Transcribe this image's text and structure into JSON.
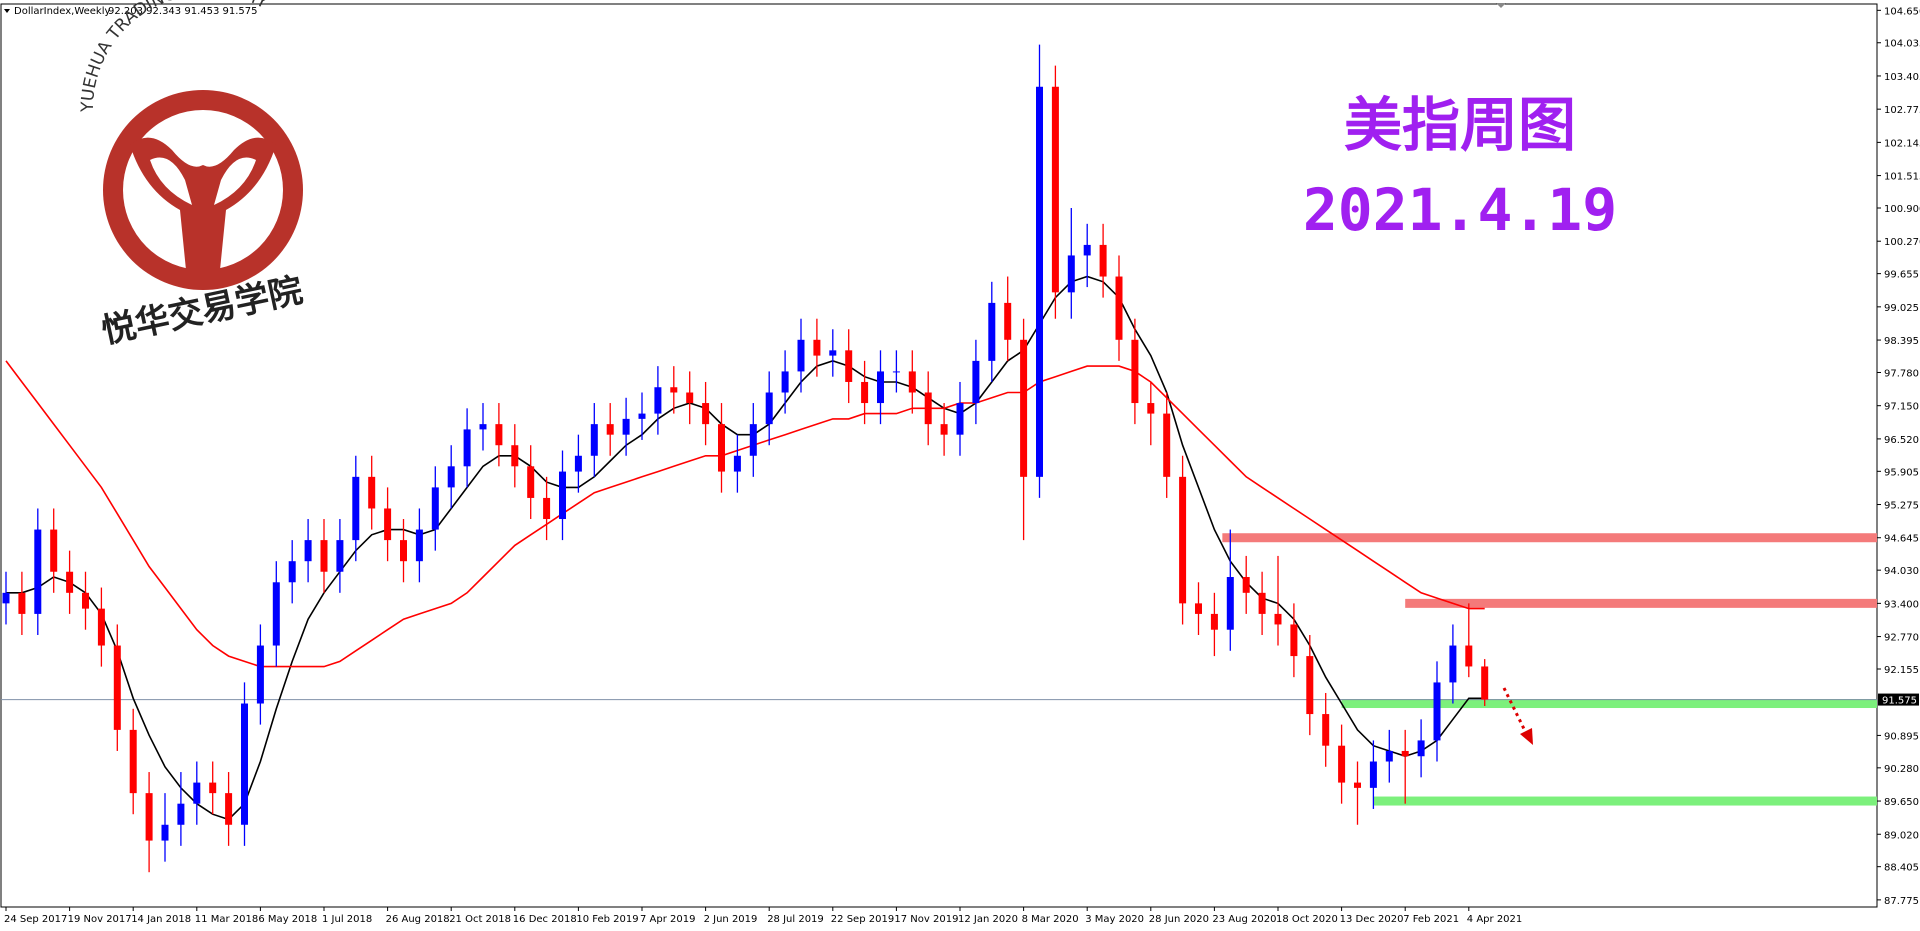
{
  "chart_data": {
    "type": "candlestick",
    "title": "DollarIndex,Weekly",
    "ohlc_label": "92.203 92.343 91.453 91.575",
    "watermark": {
      "arc_text": "YUEHUA TRADING ACADEMY",
      "cn_text": "悦华交易学院"
    },
    "annotations": [
      "美指周图",
      "2021.4.19"
    ],
    "annotation_color": "#a020f0",
    "up_color": "#0000ff",
    "down_color": "#ff0000",
    "categories": [
      "24 Sep 2017",
      null,
      null,
      null,
      "19 Nov 2017",
      null,
      null,
      null,
      "14 Jan 2018",
      null,
      null,
      null,
      "11 Mar 2018",
      null,
      null,
      null,
      "6 May 2018",
      null,
      null,
      null,
      "1 Jul 2018",
      null,
      null,
      null,
      "26 Aug 2018",
      null,
      null,
      null,
      "21 Oct 2018",
      null,
      null,
      null,
      "16 Dec 2018",
      null,
      null,
      null,
      "10 Feb 2019",
      null,
      null,
      null,
      "7 Apr 2019",
      null,
      null,
      null,
      "2 Jun 2019",
      null,
      null,
      null,
      "28 Jul 2019",
      null,
      null,
      null,
      "22 Sep 2019",
      null,
      null,
      null,
      "17 Nov 2019",
      null,
      null,
      null,
      "12 Jan 2020",
      null,
      null,
      null,
      "8 Mar 2020",
      null,
      null,
      null,
      "3 May 2020",
      null,
      null,
      null,
      "28 Jun 2020",
      null,
      null,
      null,
      "23 Aug 2020",
      null,
      null,
      null,
      "18 Oct 2020",
      null,
      null,
      null,
      "13 Dec 2020",
      null,
      null,
      null,
      "7 Feb 2021",
      null,
      null,
      null,
      "4 Apr 2021",
      null
    ],
    "open": [
      93.4,
      93.6,
      93.2,
      94.8,
      94.0,
      93.6,
      93.3,
      92.6,
      91.0,
      89.8,
      88.9,
      89.2,
      89.6,
      90.0,
      89.8,
      89.2,
      91.5,
      92.6,
      93.8,
      94.2,
      94.6,
      94.0,
      94.6,
      95.8,
      95.2,
      94.6,
      94.2,
      94.8,
      95.6,
      96.0,
      96.7,
      96.8,
      96.4,
      96.0,
      95.4,
      95.0,
      95.9,
      96.2,
      96.8,
      96.6,
      96.9,
      97.0,
      97.5,
      97.4,
      97.2,
      96.8,
      95.9,
      96.2,
      96.8,
      97.4,
      97.8,
      98.4,
      98.1,
      98.2,
      97.6,
      97.2,
      97.8,
      97.8,
      97.4,
      96.8,
      96.6,
      97.2,
      98.0,
      99.1,
      98.4,
      95.8,
      103.2,
      99.3,
      100.0,
      100.2,
      99.6,
      98.4,
      97.2,
      97.0,
      95.8,
      93.4,
      93.2,
      92.9,
      93.9,
      93.6,
      93.2,
      93.0,
      92.4,
      91.3,
      90.7,
      90.0,
      89.9,
      90.4,
      90.6,
      90.5,
      90.8,
      91.9,
      92.6,
      92.203
    ],
    "high": [
      94.0,
      94.0,
      95.2,
      95.2,
      94.4,
      94.0,
      93.7,
      93.0,
      91.4,
      90.2,
      89.8,
      90.2,
      90.4,
      90.4,
      90.2,
      91.9,
      93.0,
      94.2,
      94.6,
      95.0,
      95.0,
      95.0,
      96.2,
      96.2,
      95.6,
      95.0,
      95.2,
      96.0,
      96.4,
      97.1,
      97.2,
      97.2,
      96.8,
      96.4,
      95.8,
      96.3,
      96.6,
      97.2,
      97.2,
      97.3,
      97.4,
      97.9,
      97.9,
      97.8,
      97.6,
      97.2,
      96.6,
      97.2,
      97.8,
      98.2,
      98.8,
      98.8,
      98.6,
      98.6,
      98.0,
      98.2,
      98.2,
      98.2,
      97.8,
      97.2,
      97.6,
      98.4,
      99.5,
      99.6,
      98.8,
      104.0,
      103.6,
      100.9,
      100.6,
      100.6,
      100.0,
      98.8,
      97.6,
      97.4,
      96.2,
      93.8,
      93.6,
      94.8,
      94.3,
      94.0,
      94.3,
      93.4,
      92.8,
      91.7,
      91.1,
      90.4,
      90.8,
      91.0,
      91.0,
      91.2,
      92.3,
      93.0,
      93.4,
      92.343
    ],
    "low": [
      93.0,
      92.8,
      92.8,
      93.6,
      93.2,
      92.9,
      92.2,
      90.6,
      89.4,
      88.3,
      88.5,
      88.8,
      89.2,
      89.4,
      88.8,
      88.8,
      91.1,
      92.2,
      93.4,
      93.8,
      93.6,
      93.6,
      94.2,
      94.8,
      94.2,
      93.8,
      93.8,
      94.4,
      95.2,
      95.6,
      96.3,
      96.0,
      95.6,
      95.0,
      94.6,
      94.6,
      95.5,
      95.8,
      96.2,
      96.2,
      96.5,
      96.6,
      97.0,
      96.8,
      96.4,
      95.5,
      95.5,
      95.8,
      96.4,
      97.0,
      97.4,
      97.7,
      97.7,
      97.2,
      96.8,
      96.8,
      97.4,
      97.0,
      96.4,
      96.2,
      96.2,
      96.8,
      97.6,
      98.0,
      94.6,
      95.4,
      98.8,
      98.8,
      99.4,
      99.2,
      98.0,
      96.8,
      96.4,
      95.4,
      93.0,
      92.8,
      92.4,
      92.5,
      93.2,
      92.8,
      92.6,
      92.0,
      90.9,
      90.3,
      89.6,
      89.2,
      89.5,
      90.0,
      89.6,
      90.1,
      90.4,
      91.5,
      92.0,
      91.453
    ],
    "close": [
      93.6,
      93.2,
      94.8,
      94.0,
      93.6,
      93.3,
      92.6,
      91.0,
      89.8,
      88.9,
      89.2,
      89.6,
      90.0,
      89.8,
      89.2,
      91.5,
      92.6,
      93.8,
      94.2,
      94.6,
      94.0,
      94.6,
      95.8,
      95.2,
      94.6,
      94.2,
      94.8,
      95.6,
      96.0,
      96.7,
      96.8,
      96.4,
      96.0,
      95.4,
      95.0,
      95.9,
      96.2,
      96.8,
      96.6,
      96.9,
      97.0,
      97.5,
      97.4,
      97.2,
      96.8,
      95.9,
      96.2,
      96.8,
      97.4,
      97.8,
      98.4,
      98.1,
      98.2,
      97.6,
      97.2,
      97.8,
      97.8,
      97.4,
      96.8,
      96.6,
      97.2,
      98.0,
      99.1,
      98.4,
      95.8,
      103.2,
      99.3,
      100.0,
      100.2,
      99.6,
      98.4,
      97.2,
      97.0,
      95.8,
      93.4,
      93.2,
      92.9,
      93.9,
      93.6,
      93.2,
      93.0,
      92.4,
      91.3,
      90.7,
      90.0,
      89.9,
      90.4,
      90.6,
      90.5,
      90.8,
      91.9,
      92.6,
      92.203,
      91.575
    ],
    "overlays": [
      {
        "color": "#000000",
        "values": [
          93.6,
          93.6,
          93.7,
          93.9,
          93.8,
          93.6,
          93.2,
          92.5,
          91.6,
          90.9,
          90.3,
          89.9,
          89.6,
          89.4,
          89.3,
          89.6,
          90.4,
          91.4,
          92.3,
          93.1,
          93.6,
          94.0,
          94.4,
          94.7,
          94.8,
          94.8,
          94.7,
          94.8,
          95.2,
          95.6,
          96.0,
          96.2,
          96.2,
          96.0,
          95.7,
          95.6,
          95.6,
          95.8,
          96.1,
          96.4,
          96.6,
          96.9,
          97.1,
          97.2,
          97.1,
          96.8,
          96.6,
          96.6,
          96.8,
          97.2,
          97.6,
          97.9,
          98.0,
          97.9,
          97.7,
          97.6,
          97.6,
          97.5,
          97.3,
          97.1,
          97.0,
          97.2,
          97.6,
          98.0,
          98.2,
          98.7,
          99.2,
          99.5,
          99.6,
          99.5,
          99.2,
          98.6,
          98.1,
          97.4,
          96.4,
          95.6,
          94.8,
          94.2,
          93.8,
          93.5,
          93.4,
          93.1,
          92.6,
          92.0,
          91.5,
          91.0,
          90.7,
          90.6,
          90.5,
          90.6,
          90.8,
          91.2,
          91.6,
          91.6
        ]
      },
      {
        "color": "#ff0000",
        "values": [
          98.0,
          97.6,
          97.2,
          96.8,
          96.4,
          96.0,
          95.6,
          95.1,
          94.6,
          94.1,
          93.7,
          93.3,
          92.9,
          92.6,
          92.4,
          92.3,
          92.2,
          92.2,
          92.2,
          92.2,
          92.2,
          92.3,
          92.5,
          92.7,
          92.9,
          93.1,
          93.2,
          93.3,
          93.4,
          93.6,
          93.9,
          94.2,
          94.5,
          94.7,
          94.9,
          95.1,
          95.3,
          95.5,
          95.6,
          95.7,
          95.8,
          95.9,
          96.0,
          96.1,
          96.2,
          96.2,
          96.3,
          96.4,
          96.5,
          96.6,
          96.7,
          96.8,
          96.9,
          96.9,
          97.0,
          97.0,
          97.0,
          97.1,
          97.1,
          97.1,
          97.2,
          97.2,
          97.3,
          97.4,
          97.4,
          97.6,
          97.7,
          97.8,
          97.9,
          97.9,
          97.9,
          97.8,
          97.6,
          97.3,
          97.0,
          96.7,
          96.4,
          96.1,
          95.8,
          95.6,
          95.4,
          95.2,
          95.0,
          94.8,
          94.6,
          94.4,
          94.2,
          94.0,
          93.8,
          93.6,
          93.5,
          93.4,
          93.3,
          93.3
        ]
      }
    ],
    "levels": [
      {
        "value": 94.645,
        "start": 76.5,
        "color": "#f47a7a"
      },
      {
        "value": 93.4,
        "start": 88,
        "color": "#f47a7a"
      },
      {
        "value": 91.5,
        "start": 84,
        "color": "#7cf07c"
      },
      {
        "value": 89.65,
        "start": 86,
        "color": "#7cf07c"
      }
    ],
    "current_price": 91.575,
    "ylim": [
      87.64,
      104.77
    ],
    "yticks": [
      {
        "value": 104.65,
        "label": "104.650"
      },
      104.035,
      103.405,
      102.775,
      102.145,
      101.515,
      {
        "value": 100.9,
        "label": "100.900"
      },
      {
        "value": 100.27,
        "label": "100.270"
      },
      99.655,
      99.025,
      98.395,
      {
        "value": 97.78,
        "label": "97.780"
      },
      {
        "value": 97.15,
        "label": "97.150"
      },
      {
        "value": 96.52,
        "label": "96.520"
      },
      95.905,
      95.275,
      94.645,
      {
        "value": 94.03,
        "label": "94.030"
      },
      {
        "value": 93.4,
        "label": "93.400"
      },
      {
        "value": 92.77,
        "label": "92.770"
      },
      92.155,
      90.895,
      {
        "value": 90.28,
        "label": "90.280"
      },
      {
        "value": 89.65,
        "label": "89.650"
      },
      {
        "value": 89.02,
        "label": "89.020"
      },
      88.405,
      87.775
    ]
  }
}
